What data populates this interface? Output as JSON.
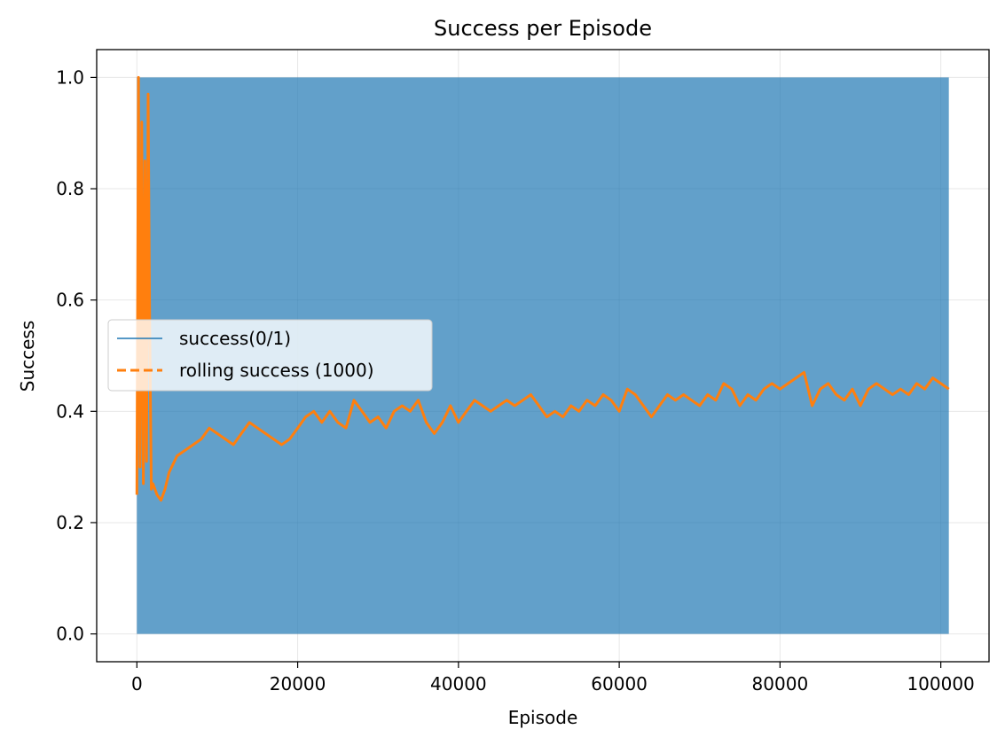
{
  "chart_data": {
    "type": "line",
    "title": "Success per Episode",
    "xlabel": "Episode",
    "ylabel": "Success",
    "xlim": [
      -5000,
      106000
    ],
    "ylim": [
      -0.05,
      1.05
    ],
    "xticks": [
      0,
      20000,
      40000,
      60000,
      80000,
      100000
    ],
    "xtick_labels": [
      "0",
      "20000",
      "40000",
      "60000",
      "80000",
      "100000"
    ],
    "yticks": [
      0.0,
      0.2,
      0.4,
      0.6,
      0.8,
      1.0
    ],
    "ytick_labels": [
      "0.0",
      "0.2",
      "0.4",
      "0.6",
      "0.8",
      "1.0"
    ],
    "grid": true,
    "legend_position": "center-left",
    "series": [
      {
        "name": "success(0/1)",
        "color": "#1f77b4",
        "style": "solid",
        "fill_range": [
          0,
          101000
        ],
        "values_note": "binary 0/1 per episode",
        "min": 0,
        "max": 1
      },
      {
        "name": "rolling success (1000)",
        "color": "#ff7f0e",
        "style": "dashed",
        "points": [
          [
            0,
            0.25
          ],
          [
            200,
            1.0
          ],
          [
            400,
            0.3
          ],
          [
            600,
            0.92
          ],
          [
            800,
            0.27
          ],
          [
            1000,
            0.85
          ],
          [
            1200,
            0.31
          ],
          [
            1400,
            0.97
          ],
          [
            1600,
            0.55
          ],
          [
            1800,
            0.26
          ],
          [
            2000,
            0.27
          ],
          [
            2500,
            0.25
          ],
          [
            3000,
            0.24
          ],
          [
            3500,
            0.26
          ],
          [
            4000,
            0.29
          ],
          [
            5000,
            0.32
          ],
          [
            6000,
            0.33
          ],
          [
            7000,
            0.34
          ],
          [
            8000,
            0.35
          ],
          [
            9000,
            0.37
          ],
          [
            10000,
            0.36
          ],
          [
            11000,
            0.35
          ],
          [
            12000,
            0.34
          ],
          [
            13000,
            0.36
          ],
          [
            14000,
            0.38
          ],
          [
            15000,
            0.37
          ],
          [
            16000,
            0.36
          ],
          [
            17000,
            0.35
          ],
          [
            18000,
            0.34
          ],
          [
            19000,
            0.35
          ],
          [
            20000,
            0.37
          ],
          [
            21000,
            0.39
          ],
          [
            22000,
            0.4
          ],
          [
            23000,
            0.38
          ],
          [
            24000,
            0.4
          ],
          [
            25000,
            0.38
          ],
          [
            26000,
            0.37
          ],
          [
            27000,
            0.42
          ],
          [
            28000,
            0.4
          ],
          [
            29000,
            0.38
          ],
          [
            30000,
            0.39
          ],
          [
            31000,
            0.37
          ],
          [
            32000,
            0.4
          ],
          [
            33000,
            0.41
          ],
          [
            34000,
            0.4
          ],
          [
            35000,
            0.42
          ],
          [
            36000,
            0.38
          ],
          [
            37000,
            0.36
          ],
          [
            38000,
            0.38
          ],
          [
            39000,
            0.41
          ],
          [
            40000,
            0.38
          ],
          [
            41000,
            0.4
          ],
          [
            42000,
            0.42
          ],
          [
            43000,
            0.41
          ],
          [
            44000,
            0.4
          ],
          [
            45000,
            0.41
          ],
          [
            46000,
            0.42
          ],
          [
            47000,
            0.41
          ],
          [
            48000,
            0.42
          ],
          [
            49000,
            0.43
          ],
          [
            50000,
            0.41
          ],
          [
            51000,
            0.39
          ],
          [
            52000,
            0.4
          ],
          [
            53000,
            0.39
          ],
          [
            54000,
            0.41
          ],
          [
            55000,
            0.4
          ],
          [
            56000,
            0.42
          ],
          [
            57000,
            0.41
          ],
          [
            58000,
            0.43
          ],
          [
            59000,
            0.42
          ],
          [
            60000,
            0.4
          ],
          [
            61000,
            0.44
          ],
          [
            62000,
            0.43
          ],
          [
            63000,
            0.41
          ],
          [
            64000,
            0.39
          ],
          [
            65000,
            0.41
          ],
          [
            66000,
            0.43
          ],
          [
            67000,
            0.42
          ],
          [
            68000,
            0.43
          ],
          [
            69000,
            0.42
          ],
          [
            70000,
            0.41
          ],
          [
            71000,
            0.43
          ],
          [
            72000,
            0.42
          ],
          [
            73000,
            0.45
          ],
          [
            74000,
            0.44
          ],
          [
            75000,
            0.41
          ],
          [
            76000,
            0.43
          ],
          [
            77000,
            0.42
          ],
          [
            78000,
            0.44
          ],
          [
            79000,
            0.45
          ],
          [
            80000,
            0.44
          ],
          [
            81000,
            0.45
          ],
          [
            82000,
            0.46
          ],
          [
            83000,
            0.47
          ],
          [
            84000,
            0.41
          ],
          [
            85000,
            0.44
          ],
          [
            86000,
            0.45
          ],
          [
            87000,
            0.43
          ],
          [
            88000,
            0.42
          ],
          [
            89000,
            0.44
          ],
          [
            90000,
            0.41
          ],
          [
            91000,
            0.44
          ],
          [
            92000,
            0.45
          ],
          [
            93000,
            0.44
          ],
          [
            94000,
            0.43
          ],
          [
            95000,
            0.44
          ],
          [
            96000,
            0.43
          ],
          [
            97000,
            0.45
          ],
          [
            98000,
            0.44
          ],
          [
            99000,
            0.46
          ],
          [
            100000,
            0.45
          ],
          [
            101000,
            0.44
          ]
        ]
      }
    ]
  }
}
